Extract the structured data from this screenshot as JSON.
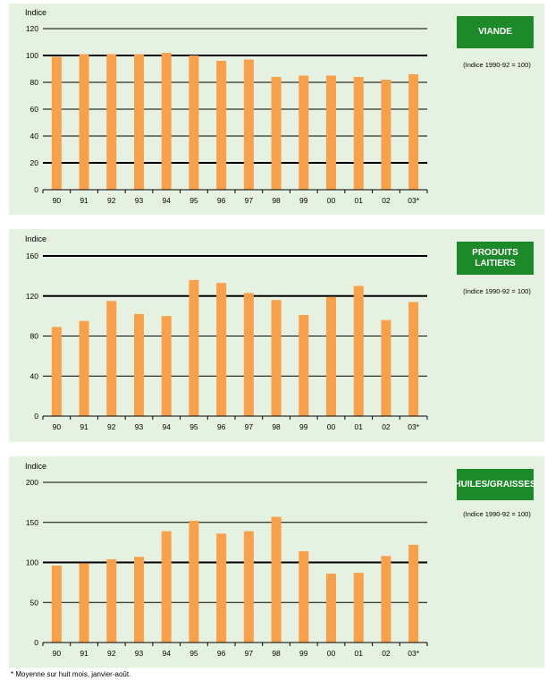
{
  "colors": {
    "panel_bg": "#e6f2e1",
    "bar": "#f9a04a",
    "badge_bg": "#1c8a28",
    "badge_text": "#ffffff"
  },
  "footnote": "* Moyenne sur huit mois, janvier-août.",
  "chart_data": [
    {
      "type": "bar",
      "title": "VIANDE",
      "note": "(Indice 1990-92 = 100)",
      "ylabel": "Indice",
      "xlabel": "",
      "ylim": [
        0,
        120
      ],
      "yticks": [
        0,
        20,
        40,
        60,
        80,
        100,
        120
      ],
      "bold_gridlines": [
        20,
        100
      ],
      "categories": [
        "90",
        "91",
        "92",
        "93",
        "94",
        "95",
        "96",
        "97",
        "98",
        "99",
        "00",
        "01",
        "02",
        "03*"
      ],
      "values": [
        99,
        101,
        101,
        101,
        102,
        100,
        96,
        97,
        84,
        85,
        85,
        84,
        82,
        86
      ]
    },
    {
      "type": "bar",
      "title": "PRODUITS LAITIERS",
      "note": "(Indice 1990-92 = 100)",
      "ylabel": "Indice",
      "xlabel": "",
      "ylim": [
        0,
        160
      ],
      "yticks": [
        0,
        40,
        80,
        120,
        160
      ],
      "bold_gridlines": [
        120,
        160
      ],
      "categories": [
        "90",
        "91",
        "92",
        "93",
        "94",
        "95",
        "96",
        "97",
        "98",
        "99",
        "00",
        "01",
        "02",
        "03*"
      ],
      "values": [
        89,
        95,
        115,
        102,
        100,
        136,
        133,
        123,
        116,
        101,
        119,
        130,
        96,
        114
      ]
    },
    {
      "type": "bar",
      "title": "HUILES/GRAISSES",
      "note": "(Indice 1990-92 = 100)",
      "ylabel": "Indice",
      "xlabel": "",
      "ylim": [
        0,
        200
      ],
      "yticks": [
        0,
        50,
        100,
        150,
        200
      ],
      "bold_gridlines": [
        100
      ],
      "categories": [
        "90",
        "91",
        "92",
        "93",
        "94",
        "95",
        "96",
        "97",
        "98",
        "99",
        "00",
        "01",
        "02",
        "03*"
      ],
      "values": [
        96,
        99,
        104,
        107,
        139,
        152,
        136,
        139,
        157,
        114,
        86,
        87,
        108,
        122
      ]
    }
  ]
}
